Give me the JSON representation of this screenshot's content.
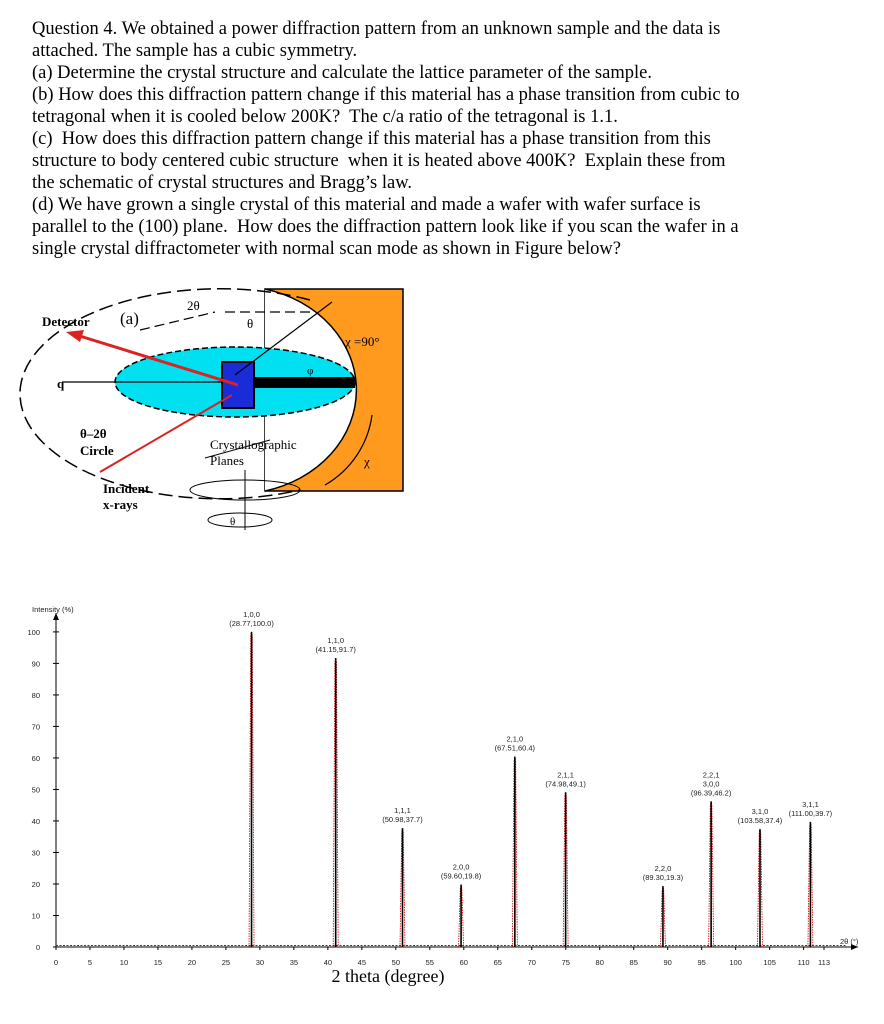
{
  "question": {
    "lines": [
      "Question 4. We obtained a power diffraction pattern from an unknown sample and the data is",
      "attached. The sample has a cubic symmetry.",
      "(a) Determine the crystal structure and calculate the lattice parameter of the sample.",
      "(b) How does this diffraction pattern change if this material has a phase transition from cubic to",
      "tetragonal when it is cooled below 200K?  The c/a ratio of the tetragonal is 1.1.",
      "(c)  How does this diffraction pattern change if this material has a phase transition from this",
      "structure to body centered cubic structure  when it is heated above 400K?  Explain these from",
      "the schematic of crystal structures and Bragg’s law.",
      "(d) We have grown a single crystal of this material and made a wafer with wafer surface is",
      "parallel to the (100) plane.  How does the diffraction pattern look like if you scan the wafer in a",
      "single crystal diffractometer with normal scan mode as shown in Figure below?"
    ]
  },
  "figure": {
    "labels": [
      "Detector",
      "(a)",
      "2θ",
      "θ",
      "χ =90°",
      "q",
      "φ",
      "θ–2θ",
      "Circle",
      "Crystallographic",
      "Planes",
      "χ",
      "Incident",
      "x-rays",
      "θ"
    ]
  },
  "chart_data": {
    "type": "stem",
    "y_axis_label": "Intensity (%)",
    "x_axis_label": "2 theta (degree)",
    "x_axis_end_label": "2θ (°)",
    "x": [
      28.77,
      41.15,
      50.98,
      59.6,
      67.51,
      74.98,
      89.3,
      96.39,
      103.58,
      111.0
    ],
    "values": [
      100.0,
      91.7,
      37.7,
      19.8,
      60.4,
      49.1,
      19.3,
      46.2,
      37.4,
      39.7
    ],
    "value_labels": [
      "(28.77,100.0)",
      "(41.15,91.7)",
      "(50.98,37.7)",
      "(59.60,19.8)",
      "(67.51,60.4)",
      "(74.98,49.1)",
      "(89.30,19.3)",
      "(96.39,46.2)",
      "(103.58,37.4)",
      "(111.00,39.7)"
    ],
    "peak_labels": [
      [
        "1,0,0"
      ],
      [
        "1,1,0"
      ],
      [
        "1,1,1"
      ],
      [
        "2,0,0"
      ],
      [
        "2,1,0"
      ],
      [
        "2,1,1"
      ],
      [
        "2,2,0"
      ],
      [
        "2,2,1",
        "3,0,0"
      ],
      [
        "3,1,0"
      ],
      [
        "3,1,1"
      ]
    ],
    "color": "#000000",
    "outline_color": "#cc0000",
    "xlim": [
      0,
      118
    ],
    "ylim": [
      0,
      106
    ],
    "xticks": [
      0,
      5,
      10,
      15,
      20,
      25,
      30,
      35,
      40,
      45,
      50,
      55,
      60,
      65,
      70,
      75,
      80,
      85,
      90,
      95,
      100,
      105,
      110,
      113
    ],
    "yticks": [
      0,
      10,
      20,
      30,
      40,
      50,
      60,
      70,
      80,
      90,
      100
    ]
  }
}
